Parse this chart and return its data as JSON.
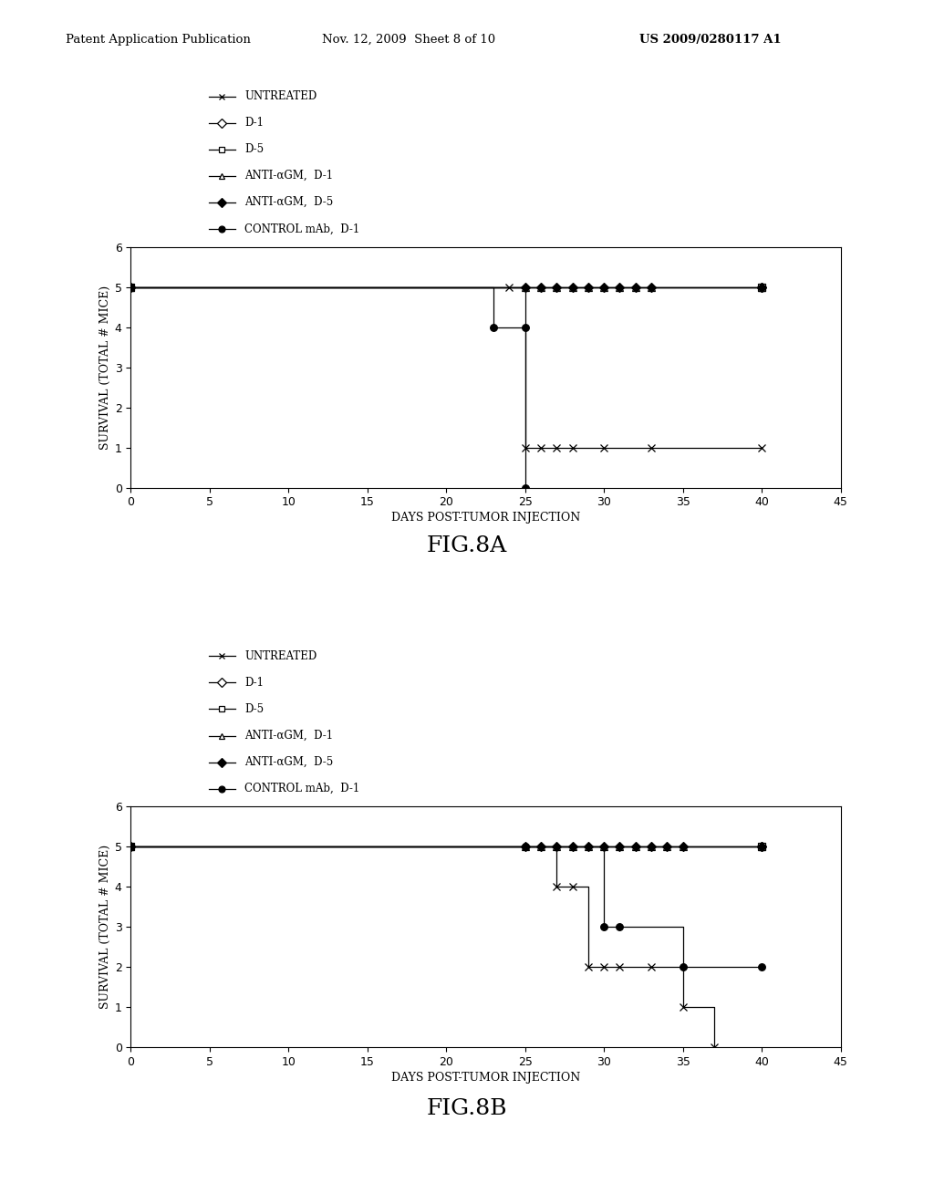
{
  "header_left": "Patent Application Publication",
  "header_mid": "Nov. 12, 2009  Sheet 8 of 10",
  "header_right": "US 2009/0280117 A1",
  "fig_a_label": "FIG.8A",
  "fig_b_label": "FIG.8B",
  "xlabel": "DAYS POST-TUMOR INJECTION",
  "ylabel": "SURVIVAL (TOTAL # MICE)",
  "xlim": [
    0,
    45
  ],
  "ylim": [
    0,
    6
  ],
  "xticks": [
    0,
    5,
    10,
    15,
    20,
    25,
    30,
    35,
    40,
    45
  ],
  "yticks": [
    0,
    1,
    2,
    3,
    4,
    5,
    6
  ],
  "legend_entries": [
    {
      "label": "UNTREATED",
      "marker": "x",
      "filled": false
    },
    {
      "label": "D-1",
      "marker": "D",
      "filled": false
    },
    {
      "label": "D-5",
      "marker": "s",
      "filled": false
    },
    {
      "label": "ANTI-αGM,  D-1",
      "marker": "^",
      "filled": false
    },
    {
      "label": "ANTI-αGM,  D-5",
      "marker": "D",
      "filled": true
    },
    {
      "label": "CONTROL mAb,  D-1",
      "marker": "o",
      "filled": true
    }
  ],
  "fig_a_series": [
    {
      "marker": "D",
      "filled": false,
      "x": [
        0,
        40
      ],
      "y": [
        5,
        5
      ]
    },
    {
      "marker": "s",
      "filled": false,
      "x": [
        0,
        40
      ],
      "y": [
        5,
        5
      ]
    },
    {
      "marker": "^",
      "filled": false,
      "x": [
        0,
        25,
        26,
        27,
        28,
        29,
        30,
        31,
        32,
        33,
        40
      ],
      "y": [
        5,
        5,
        5,
        5,
        5,
        5,
        5,
        5,
        5,
        5,
        5
      ]
    },
    {
      "marker": "D",
      "filled": true,
      "x": [
        0,
        25,
        26,
        27,
        28,
        29,
        30,
        31,
        32,
        33,
        40
      ],
      "y": [
        5,
        5,
        5,
        5,
        5,
        5,
        5,
        5,
        5,
        5,
        5
      ]
    },
    {
      "marker": "x",
      "filled": false,
      "x": [
        0,
        24,
        25,
        26,
        27,
        28,
        30,
        33,
        40
      ],
      "y": [
        5,
        5,
        1,
        1,
        1,
        1,
        1,
        1,
        1
      ]
    },
    {
      "marker": "o",
      "filled": true,
      "x": [
        0,
        23,
        25,
        25
      ],
      "y": [
        5,
        4,
        4,
        0
      ]
    }
  ],
  "fig_b_series": [
    {
      "marker": "D",
      "filled": false,
      "x": [
        0,
        40
      ],
      "y": [
        5,
        5
      ]
    },
    {
      "marker": "s",
      "filled": false,
      "x": [
        0,
        40
      ],
      "y": [
        5,
        5
      ]
    },
    {
      "marker": "^",
      "filled": false,
      "x": [
        0,
        25,
        26,
        27,
        28,
        29,
        30,
        31,
        32,
        33,
        34,
        35,
        40
      ],
      "y": [
        5,
        5,
        5,
        5,
        5,
        5,
        5,
        5,
        5,
        5,
        5,
        5,
        5
      ]
    },
    {
      "marker": "D",
      "filled": true,
      "x": [
        0,
        25,
        26,
        27,
        28,
        29,
        30,
        31,
        32,
        33,
        34,
        35,
        40
      ],
      "y": [
        5,
        5,
        5,
        5,
        5,
        5,
        5,
        5,
        5,
        5,
        5,
        5,
        5
      ]
    },
    {
      "marker": "x",
      "filled": false,
      "x": [
        0,
        27,
        28,
        29,
        30,
        31,
        33,
        35,
        37
      ],
      "y": [
        5,
        4,
        4,
        2,
        2,
        2,
        2,
        1,
        0
      ]
    },
    {
      "marker": "o",
      "filled": true,
      "x": [
        0,
        25,
        30,
        31,
        35,
        40
      ],
      "y": [
        5,
        5,
        3,
        3,
        2,
        2
      ]
    }
  ],
  "bg_color": "#ffffff",
  "line_color": "#000000"
}
